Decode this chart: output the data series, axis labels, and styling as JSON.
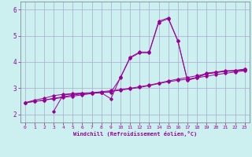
{
  "xlabel": "Windchill (Refroidissement éolien,°C)",
  "bg_color": "#ccefef",
  "line_color": "#990099",
  "grid_color": "#aaaacc",
  "xlim": [
    -0.5,
    23.5
  ],
  "ylim": [
    1.7,
    6.3
  ],
  "xticks": [
    0,
    1,
    2,
    3,
    4,
    5,
    6,
    7,
    8,
    9,
    10,
    11,
    12,
    13,
    14,
    15,
    16,
    17,
    18,
    19,
    20,
    21,
    22,
    23
  ],
  "yticks": [
    2,
    3,
    4,
    5,
    6
  ],
  "curve1_x": [
    0,
    1,
    2,
    3,
    4,
    5,
    6,
    7,
    8,
    9,
    10,
    11,
    12,
    13,
    14,
    15,
    16,
    17,
    18,
    19,
    20,
    21,
    22,
    23
  ],
  "curve1_y": [
    2.45,
    2.55,
    2.62,
    2.72,
    2.77,
    2.8,
    2.82,
    2.83,
    2.84,
    2.85,
    3.4,
    4.15,
    4.35,
    4.35,
    5.5,
    5.65,
    4.8,
    3.3,
    3.4,
    3.55,
    3.6,
    3.65,
    3.65,
    3.7
  ],
  "curve2_x": [
    0,
    1,
    2,
    3,
    4,
    5,
    6,
    7,
    8,
    9,
    10,
    11,
    12,
    13,
    14,
    15,
    16,
    17,
    18,
    19,
    20,
    21,
    22,
    23
  ],
  "curve2_y": [
    2.45,
    2.5,
    2.55,
    2.6,
    2.65,
    2.7,
    2.75,
    2.8,
    2.84,
    2.88,
    2.93,
    2.98,
    3.03,
    3.1,
    3.18,
    3.25,
    3.3,
    3.35,
    3.4,
    3.46,
    3.52,
    3.57,
    3.62,
    3.67
  ],
  "curve3_x": [
    0,
    1,
    2,
    3,
    4,
    5,
    6,
    7,
    8,
    9,
    10,
    11,
    12,
    13,
    14,
    15,
    16,
    17,
    18,
    19,
    20,
    21,
    22,
    23
  ],
  "curve3_y": [
    2.45,
    2.5,
    2.55,
    2.62,
    2.68,
    2.74,
    2.79,
    2.83,
    2.87,
    2.91,
    2.95,
    3.0,
    3.06,
    3.12,
    3.2,
    3.28,
    3.35,
    3.41,
    3.48,
    3.55,
    3.6,
    3.65,
    3.68,
    3.73
  ],
  "curve4_x": [
    3,
    4,
    5,
    6,
    7,
    8,
    9,
    10,
    11,
    12,
    13,
    14,
    15,
    16,
    17,
    18,
    19,
    20,
    21,
    22,
    23
  ],
  "curve4_y": [
    2.12,
    2.75,
    2.78,
    2.8,
    2.82,
    2.83,
    2.6,
    3.42,
    4.18,
    4.38,
    4.38,
    5.55,
    5.68,
    4.82,
    3.32,
    3.42,
    3.58,
    3.62,
    3.67,
    3.67,
    3.72
  ]
}
